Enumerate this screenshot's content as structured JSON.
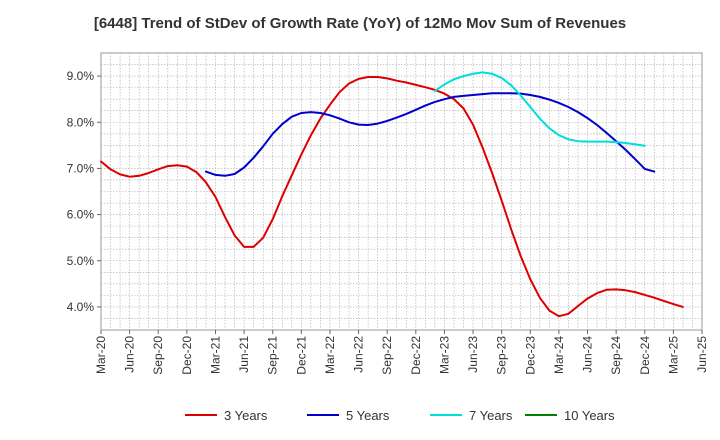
{
  "chart_data": {
    "type": "line",
    "title": "[6448]  Trend of StDev of Growth Rate (YoY) of 12Mo Mov Sum of Revenues",
    "xlabel": "",
    "ylabel": "",
    "ylim": [
      3.5,
      9.5
    ],
    "y_ticks": [
      4.0,
      5.0,
      6.0,
      7.0,
      8.0,
      9.0
    ],
    "y_tick_labels": [
      "4.0%",
      "5.0%",
      "6.0%",
      "7.0%",
      "8.0%",
      "9.0%"
    ],
    "x_tick_labels": [
      "Mar-20",
      "Jun-20",
      "Sep-20",
      "Dec-20",
      "Mar-21",
      "Jun-21",
      "Sep-21",
      "Dec-21",
      "Mar-22",
      "Jun-22",
      "Sep-22",
      "Dec-22",
      "Mar-23",
      "Jun-23",
      "Sep-23",
      "Dec-23",
      "Mar-24",
      "Jun-24",
      "Sep-24",
      "Dec-24",
      "Mar-25",
      "Jun-25"
    ],
    "x_range": [
      0,
      63
    ],
    "grid": true,
    "legend_position": "bottom",
    "series": [
      {
        "name": "3 Years",
        "color": "#dd0000",
        "points": [
          [
            0,
            7.15
          ],
          [
            1,
            6.98
          ],
          [
            2,
            6.87
          ],
          [
            3,
            6.82
          ],
          [
            4,
            6.84
          ],
          [
            5,
            6.9
          ],
          [
            6,
            6.98
          ],
          [
            7,
            7.05
          ],
          [
            8,
            7.07
          ],
          [
            9,
            7.04
          ],
          [
            10,
            6.92
          ],
          [
            11,
            6.7
          ],
          [
            12,
            6.38
          ],
          [
            13,
            5.95
          ],
          [
            14,
            5.55
          ],
          [
            15,
            5.3
          ],
          [
            16,
            5.3
          ],
          [
            17,
            5.5
          ],
          [
            18,
            5.9
          ],
          [
            19,
            6.4
          ],
          [
            20,
            6.85
          ],
          [
            21,
            7.3
          ],
          [
            22,
            7.72
          ],
          [
            23,
            8.08
          ],
          [
            24,
            8.38
          ],
          [
            25,
            8.65
          ],
          [
            26,
            8.84
          ],
          [
            27,
            8.94
          ],
          [
            28,
            8.98
          ],
          [
            29,
            8.98
          ],
          [
            30,
            8.95
          ],
          [
            31,
            8.9
          ],
          [
            32,
            8.86
          ],
          [
            33,
            8.81
          ],
          [
            34,
            8.76
          ],
          [
            35,
            8.7
          ],
          [
            36,
            8.62
          ],
          [
            37,
            8.5
          ],
          [
            38,
            8.3
          ],
          [
            39,
            7.95
          ],
          [
            40,
            7.45
          ],
          [
            41,
            6.9
          ],
          [
            42,
            6.3
          ],
          [
            43,
            5.68
          ],
          [
            44,
            5.1
          ],
          [
            45,
            4.6
          ],
          [
            46,
            4.2
          ],
          [
            47,
            3.92
          ],
          [
            48,
            3.8
          ],
          [
            49,
            3.85
          ],
          [
            50,
            4.02
          ],
          [
            51,
            4.18
          ],
          [
            52,
            4.3
          ],
          [
            53,
            4.37
          ],
          [
            54,
            4.38
          ],
          [
            55,
            4.36
          ],
          [
            56,
            4.32
          ],
          [
            57,
            4.26
          ],
          [
            58,
            4.2
          ],
          [
            59,
            4.13
          ],
          [
            60,
            4.06
          ],
          [
            61,
            4.0
          ]
        ]
      },
      {
        "name": "5 Years",
        "color": "#0000cc",
        "points": [
          [
            11,
            6.93
          ],
          [
            12,
            6.86
          ],
          [
            13,
            6.84
          ],
          [
            14,
            6.88
          ],
          [
            15,
            7.02
          ],
          [
            16,
            7.23
          ],
          [
            17,
            7.48
          ],
          [
            18,
            7.75
          ],
          [
            19,
            7.96
          ],
          [
            20,
            8.12
          ],
          [
            21,
            8.2
          ],
          [
            22,
            8.22
          ],
          [
            23,
            8.2
          ],
          [
            24,
            8.15
          ],
          [
            25,
            8.08
          ],
          [
            26,
            8.0
          ],
          [
            27,
            7.95
          ],
          [
            28,
            7.94
          ],
          [
            29,
            7.97
          ],
          [
            30,
            8.03
          ],
          [
            31,
            8.1
          ],
          [
            32,
            8.18
          ],
          [
            33,
            8.27
          ],
          [
            34,
            8.36
          ],
          [
            35,
            8.44
          ],
          [
            36,
            8.5
          ],
          [
            37,
            8.55
          ],
          [
            38,
            8.57
          ],
          [
            39,
            8.59
          ],
          [
            40,
            8.61
          ],
          [
            41,
            8.63
          ],
          [
            42,
            8.63
          ],
          [
            43,
            8.63
          ],
          [
            44,
            8.62
          ],
          [
            45,
            8.59
          ],
          [
            46,
            8.55
          ],
          [
            47,
            8.49
          ],
          [
            48,
            8.42
          ],
          [
            49,
            8.33
          ],
          [
            50,
            8.22
          ],
          [
            51,
            8.09
          ],
          [
            52,
            7.94
          ],
          [
            53,
            7.77
          ],
          [
            54,
            7.59
          ],
          [
            55,
            7.4
          ],
          [
            56,
            7.2
          ],
          [
            57,
            6.99
          ],
          [
            58,
            6.93
          ]
        ]
      },
      {
        "name": "7 Years",
        "color": "#00dddd",
        "points": [
          [
            35,
            8.68
          ],
          [
            36,
            8.82
          ],
          [
            37,
            8.93
          ],
          [
            38,
            9.0
          ],
          [
            39,
            9.05
          ],
          [
            40,
            9.08
          ],
          [
            41,
            9.05
          ],
          [
            42,
            8.96
          ],
          [
            43,
            8.8
          ],
          [
            44,
            8.58
          ],
          [
            45,
            8.33
          ],
          [
            46,
            8.08
          ],
          [
            47,
            7.87
          ],
          [
            48,
            7.72
          ],
          [
            49,
            7.63
          ],
          [
            50,
            7.59
          ],
          [
            51,
            7.58
          ],
          [
            52,
            7.58
          ],
          [
            53,
            7.58
          ],
          [
            54,
            7.57
          ],
          [
            55,
            7.55
          ],
          [
            56,
            7.52
          ],
          [
            57,
            7.49
          ]
        ]
      },
      {
        "name": "10 Years",
        "color": "#008000",
        "points": []
      }
    ]
  }
}
